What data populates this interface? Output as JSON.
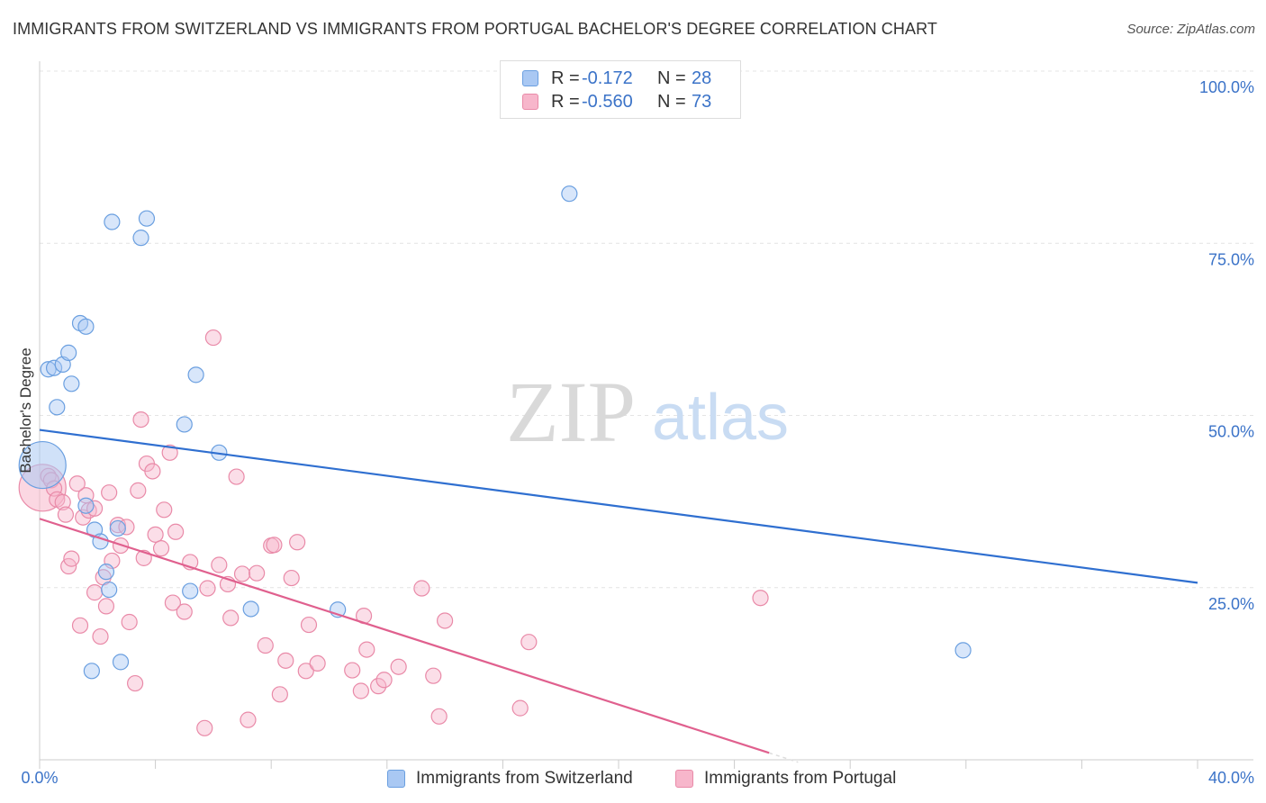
{
  "header": {
    "title": "IMMIGRANTS FROM SWITZERLAND VS IMMIGRANTS FROM PORTUGAL BACHELOR'S DEGREE CORRELATION CHART",
    "source": "Source: ZipAtlas.com"
  },
  "watermark": {
    "zip": "ZIP",
    "atlas": "atlas"
  },
  "legend": {
    "rows": [
      {
        "r_label": "R =",
        "r_value": "-0.172",
        "n_label": "N =",
        "n_value": "28",
        "color": "#a9c8f3"
      },
      {
        "r_label": "R =",
        "r_value": "-0.560",
        "n_label": "N =",
        "n_value": "73",
        "color": "#f7b6cb"
      }
    ]
  },
  "bottom_legend": {
    "switzerland": "Immigrants from Switzerland",
    "portugal": "Immigrants from Portugal"
  },
  "chart_data": {
    "type": "scatter",
    "ylabel": "Bachelor's Degree",
    "xlim": [
      0,
      40
    ],
    "ylim": [
      0,
      100
    ],
    "x_ticks": [
      "0.0%",
      "40.0%"
    ],
    "y_ticks": [
      {
        "value": 25,
        "label": "25.0%"
      },
      {
        "value": 50,
        "label": "50.0%"
      },
      {
        "value": 75,
        "label": "75.0%"
      },
      {
        "value": 100,
        "label": "100.0%"
      }
    ],
    "grid": true,
    "colors": {
      "switzerland_fill": "#a9c8f3",
      "switzerland_stroke": "#6a9fe0",
      "switzerland_line": "#2f6fd0",
      "portugal_fill": "#f7b6cb",
      "portugal_stroke": "#e98aa8",
      "portugal_line": "#e0608e"
    },
    "series": [
      {
        "name": "Immigrants from Switzerland",
        "trend": {
          "x": [
            0,
            40
          ],
          "y": [
            47.9,
            25.7
          ]
        },
        "points": [
          {
            "x": 0.1,
            "y": 42.8,
            "big": true
          },
          {
            "x": 0.3,
            "y": 56.7
          },
          {
            "x": 0.5,
            "y": 56.9
          },
          {
            "x": 0.8,
            "y": 57.4
          },
          {
            "x": 0.6,
            "y": 51.2
          },
          {
            "x": 1.0,
            "y": 59.1
          },
          {
            "x": 1.1,
            "y": 54.6
          },
          {
            "x": 1.4,
            "y": 63.4
          },
          {
            "x": 1.6,
            "y": 62.9
          },
          {
            "x": 2.5,
            "y": 78.1
          },
          {
            "x": 3.5,
            "y": 75.8
          },
          {
            "x": 3.7,
            "y": 78.6
          },
          {
            "x": 5.4,
            "y": 55.9
          },
          {
            "x": 5.0,
            "y": 48.7
          },
          {
            "x": 6.2,
            "y": 44.6
          },
          {
            "x": 1.6,
            "y": 36.9
          },
          {
            "x": 1.9,
            "y": 33.4
          },
          {
            "x": 2.1,
            "y": 31.7
          },
          {
            "x": 2.7,
            "y": 33.6
          },
          {
            "x": 2.3,
            "y": 27.3
          },
          {
            "x": 2.4,
            "y": 24.7
          },
          {
            "x": 5.2,
            "y": 24.5
          },
          {
            "x": 7.3,
            "y": 21.9
          },
          {
            "x": 10.3,
            "y": 21.8
          },
          {
            "x": 1.8,
            "y": 12.9
          },
          {
            "x": 2.8,
            "y": 14.2
          },
          {
            "x": 18.3,
            "y": 82.2
          },
          {
            "x": 31.9,
            "y": 15.9
          }
        ]
      },
      {
        "name": "Immigrants from Portugal",
        "trend": {
          "x": [
            0,
            25.2
          ],
          "y": [
            35.0,
            1.0
          ]
        },
        "points": [
          {
            "x": 0.1,
            "y": 39.5,
            "big": true
          },
          {
            "x": 0.3,
            "y": 41.2
          },
          {
            "x": 0.4,
            "y": 40.6
          },
          {
            "x": 0.5,
            "y": 39.4
          },
          {
            "x": 0.6,
            "y": 37.8
          },
          {
            "x": 0.8,
            "y": 37.4
          },
          {
            "x": 0.9,
            "y": 35.6
          },
          {
            "x": 1.0,
            "y": 28.1
          },
          {
            "x": 1.1,
            "y": 29.2
          },
          {
            "x": 1.4,
            "y": 19.5
          },
          {
            "x": 1.5,
            "y": 35.2
          },
          {
            "x": 1.6,
            "y": 38.4
          },
          {
            "x": 1.7,
            "y": 36.2
          },
          {
            "x": 1.9,
            "y": 36.5
          },
          {
            "x": 1.9,
            "y": 24.3
          },
          {
            "x": 2.1,
            "y": 17.9
          },
          {
            "x": 2.2,
            "y": 26.5
          },
          {
            "x": 2.3,
            "y": 22.3
          },
          {
            "x": 2.4,
            "y": 38.8
          },
          {
            "x": 2.5,
            "y": 28.9
          },
          {
            "x": 2.7,
            "y": 34.1
          },
          {
            "x": 2.8,
            "y": 31.1
          },
          {
            "x": 3.0,
            "y": 33.8
          },
          {
            "x": 3.1,
            "y": 20.0
          },
          {
            "x": 3.3,
            "y": 11.1
          },
          {
            "x": 3.4,
            "y": 39.1
          },
          {
            "x": 3.5,
            "y": 49.4
          },
          {
            "x": 3.6,
            "y": 29.3
          },
          {
            "x": 3.7,
            "y": 43.0
          },
          {
            "x": 3.9,
            "y": 41.9
          },
          {
            "x": 4.0,
            "y": 32.7
          },
          {
            "x": 4.2,
            "y": 30.7
          },
          {
            "x": 4.3,
            "y": 36.3
          },
          {
            "x": 4.5,
            "y": 44.6
          },
          {
            "x": 4.6,
            "y": 22.8
          },
          {
            "x": 4.7,
            "y": 33.1
          },
          {
            "x": 5.0,
            "y": 21.5
          },
          {
            "x": 5.2,
            "y": 28.7
          },
          {
            "x": 5.7,
            "y": 4.6
          },
          {
            "x": 5.8,
            "y": 24.9
          },
          {
            "x": 6.0,
            "y": 61.3
          },
          {
            "x": 6.2,
            "y": 28.3
          },
          {
            "x": 6.5,
            "y": 25.5
          },
          {
            "x": 6.6,
            "y": 20.6
          },
          {
            "x": 6.8,
            "y": 41.1
          },
          {
            "x": 7.0,
            "y": 27.0
          },
          {
            "x": 7.2,
            "y": 5.8
          },
          {
            "x": 7.5,
            "y": 27.1
          },
          {
            "x": 7.8,
            "y": 16.6
          },
          {
            "x": 8.0,
            "y": 31.1
          },
          {
            "x": 8.1,
            "y": 31.2
          },
          {
            "x": 8.3,
            "y": 9.5
          },
          {
            "x": 8.5,
            "y": 14.4
          },
          {
            "x": 8.7,
            "y": 26.4
          },
          {
            "x": 8.9,
            "y": 31.6
          },
          {
            "x": 9.2,
            "y": 12.9
          },
          {
            "x": 9.3,
            "y": 19.6
          },
          {
            "x": 9.6,
            "y": 14.0
          },
          {
            "x": 10.8,
            "y": 13.0
          },
          {
            "x": 11.1,
            "y": 10.0
          },
          {
            "x": 11.2,
            "y": 20.9
          },
          {
            "x": 11.3,
            "y": 16.0
          },
          {
            "x": 11.7,
            "y": 10.7
          },
          {
            "x": 11.9,
            "y": 11.6
          },
          {
            "x": 12.4,
            "y": 13.5
          },
          {
            "x": 13.2,
            "y": 24.9
          },
          {
            "x": 13.6,
            "y": 12.2
          },
          {
            "x": 13.8,
            "y": 6.3
          },
          {
            "x": 14.0,
            "y": 20.2
          },
          {
            "x": 16.9,
            "y": 17.1
          },
          {
            "x": 16.6,
            "y": 7.5
          },
          {
            "x": 24.9,
            "y": 23.5
          },
          {
            "x": 1.3,
            "y": 40.1
          }
        ]
      }
    ]
  }
}
